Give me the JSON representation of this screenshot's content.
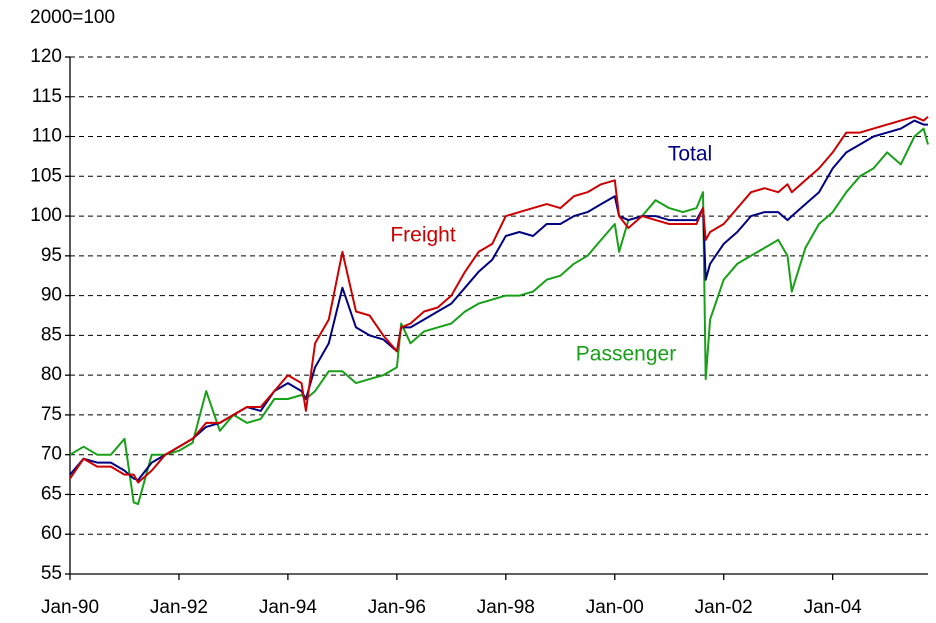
{
  "chart_data": {
    "type": "line",
    "y_label": "2000=100",
    "x": [
      1990.0,
      1990.25,
      1990.5,
      1990.75,
      1991.0,
      1991.17,
      1991.25,
      1991.5,
      1991.75,
      1992.0,
      1992.25,
      1992.5,
      1992.75,
      1993.0,
      1993.25,
      1993.5,
      1993.75,
      1994.0,
      1994.25,
      1994.33,
      1994.5,
      1994.75,
      1995.0,
      1995.25,
      1995.5,
      1995.75,
      1996.0,
      1996.08,
      1996.25,
      1996.5,
      1996.75,
      1997.0,
      1997.25,
      1997.5,
      1997.75,
      1998.0,
      1998.25,
      1998.5,
      1998.75,
      1999.0,
      1999.25,
      1999.5,
      1999.75,
      2000.0,
      2000.08,
      2000.25,
      2000.5,
      2000.75,
      2001.0,
      2001.25,
      2001.5,
      2001.62,
      2001.67,
      2001.75,
      2002.0,
      2002.25,
      2002.5,
      2002.75,
      2003.0,
      2003.17,
      2003.25,
      2003.5,
      2003.75,
      2004.0,
      2004.25,
      2004.5,
      2004.75,
      2005.0,
      2005.25,
      2005.5,
      2005.67,
      2005.75
    ],
    "series": [
      {
        "name": "Freight",
        "color": "#cc0000",
        "values": [
          67,
          69.5,
          68.5,
          68.5,
          67.5,
          67.5,
          66.5,
          68,
          70,
          71,
          72,
          74,
          74,
          75,
          76,
          76,
          78,
          80,
          79,
          75.5,
          84,
          87,
          95.5,
          88,
          87.5,
          85,
          83,
          86,
          86.5,
          88,
          88.5,
          90,
          93,
          95.5,
          96.5,
          100,
          100.5,
          101,
          101.5,
          101,
          102.5,
          103,
          104,
          104.5,
          100,
          98.5,
          100,
          99.5,
          99,
          99,
          99,
          101,
          97,
          98,
          99,
          101,
          103,
          103.5,
          103,
          104,
          103,
          104.5,
          106,
          108,
          110.5,
          110.5,
          111,
          111.5,
          112,
          112.5,
          112,
          112.5
        ]
      },
      {
        "name": "Total",
        "color": "#000080",
        "values": [
          67.5,
          69.5,
          69,
          69,
          68,
          67,
          66.8,
          69,
          70,
          71,
          72,
          73.5,
          74,
          75,
          76,
          75.5,
          78,
          79,
          78,
          77,
          81,
          84,
          91,
          86,
          85,
          84.5,
          83,
          86,
          86,
          87,
          88,
          89,
          91,
          93,
          94.5,
          97.5,
          98,
          97.5,
          99,
          99,
          100,
          100.5,
          101.5,
          102.5,
          100,
          99.5,
          100,
          100,
          99.5,
          99.5,
          99.5,
          101,
          92,
          94,
          96.5,
          98,
          100,
          100.5,
          100.5,
          99.5,
          100,
          101.5,
          103,
          106,
          108,
          109,
          110,
          110.5,
          111,
          112,
          111.5,
          111.5
        ]
      },
      {
        "name": "Passenger",
        "color": "#18a018",
        "values": [
          70,
          71,
          70,
          70,
          72,
          64,
          63.8,
          70,
          70,
          70.5,
          71.5,
          78,
          73,
          75,
          74,
          74.5,
          77,
          77,
          77.5,
          77,
          78,
          80.5,
          80.5,
          79,
          79.5,
          80,
          81,
          86.5,
          84,
          85.5,
          86,
          86.5,
          88,
          89,
          89.5,
          90,
          90,
          90.5,
          92,
          92.5,
          94,
          95,
          97,
          99,
          95.5,
          99.5,
          100,
          102,
          101,
          100.5,
          101,
          103,
          79.5,
          87,
          92,
          94,
          95,
          96,
          97,
          95,
          90.5,
          96,
          99,
          100.5,
          103,
          105,
          106,
          108,
          106.5,
          110,
          111,
          109
        ]
      }
    ],
    "xlim": [
      1990,
      2005.75
    ],
    "xticks": [
      {
        "value": 1990,
        "label": "Jan-90"
      },
      {
        "value": 1992,
        "label": "Jan-92"
      },
      {
        "value": 1994,
        "label": "Jan-94"
      },
      {
        "value": 1996,
        "label": "Jan-96"
      },
      {
        "value": 1998,
        "label": "Jan-98"
      },
      {
        "value": 2000,
        "label": "Jan-00"
      },
      {
        "value": 2002,
        "label": "Jan-02"
      },
      {
        "value": 2004,
        "label": "Jan-04"
      }
    ],
    "ylim": [
      55,
      120
    ],
    "yticks": [
      55,
      60,
      65,
      70,
      75,
      80,
      85,
      90,
      95,
      100,
      105,
      110,
      115,
      120
    ],
    "grid": true
  }
}
